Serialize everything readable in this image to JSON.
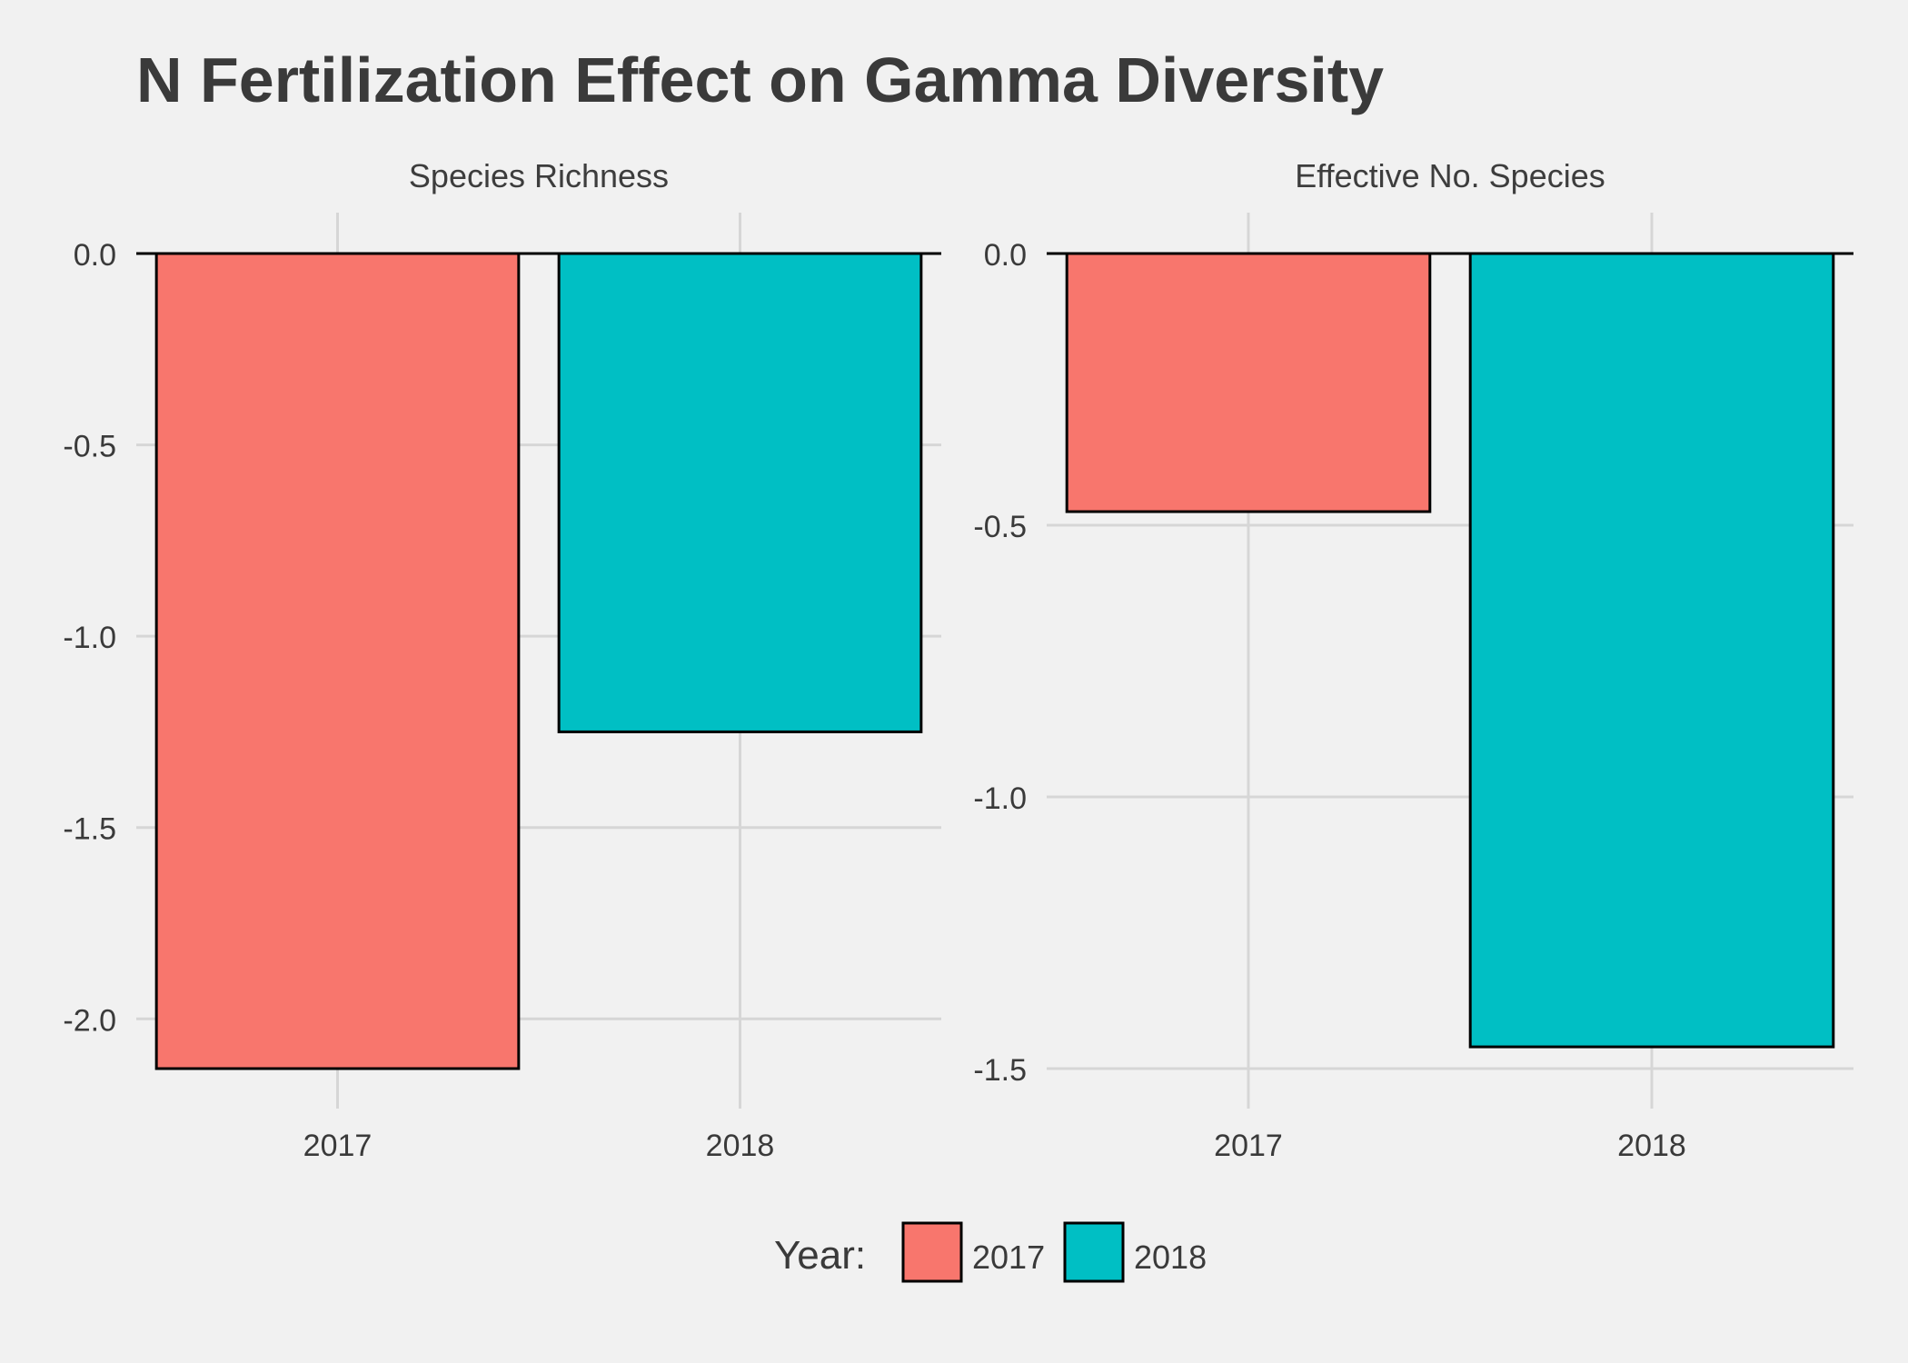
{
  "chart_data": {
    "type": "bar",
    "title": "N Fertilization Effect on Gamma Diversity",
    "categories": [
      "2017",
      "2018"
    ],
    "colors": {
      "2017": "#f8766d",
      "2018": "#00bfc4"
    },
    "panels": [
      {
        "strip": "Species Richness",
        "values": [
          -2.13,
          -1.25
        ],
        "ylim": [
          -2.13,
          0
        ],
        "yticks": [
          0.0,
          -0.5,
          -1.0,
          -1.5,
          -2.0
        ],
        "ytick_labels": [
          "0.0",
          "-0.5",
          "-1.0",
          "-1.5",
          "-2.0"
        ]
      },
      {
        "strip": "Effective No. Species",
        "values": [
          -0.475,
          -1.46
        ],
        "ylim": [
          -1.5,
          0
        ],
        "yticks": [
          0.0,
          -0.5,
          -1.0,
          -1.5
        ],
        "ytick_labels": [
          "0.0",
          "-0.5",
          "-1.0",
          "-1.5"
        ]
      }
    ],
    "legend": {
      "title": "Year:",
      "position": "bottom",
      "entries": [
        "2017",
        "2018"
      ]
    },
    "grid": true
  }
}
